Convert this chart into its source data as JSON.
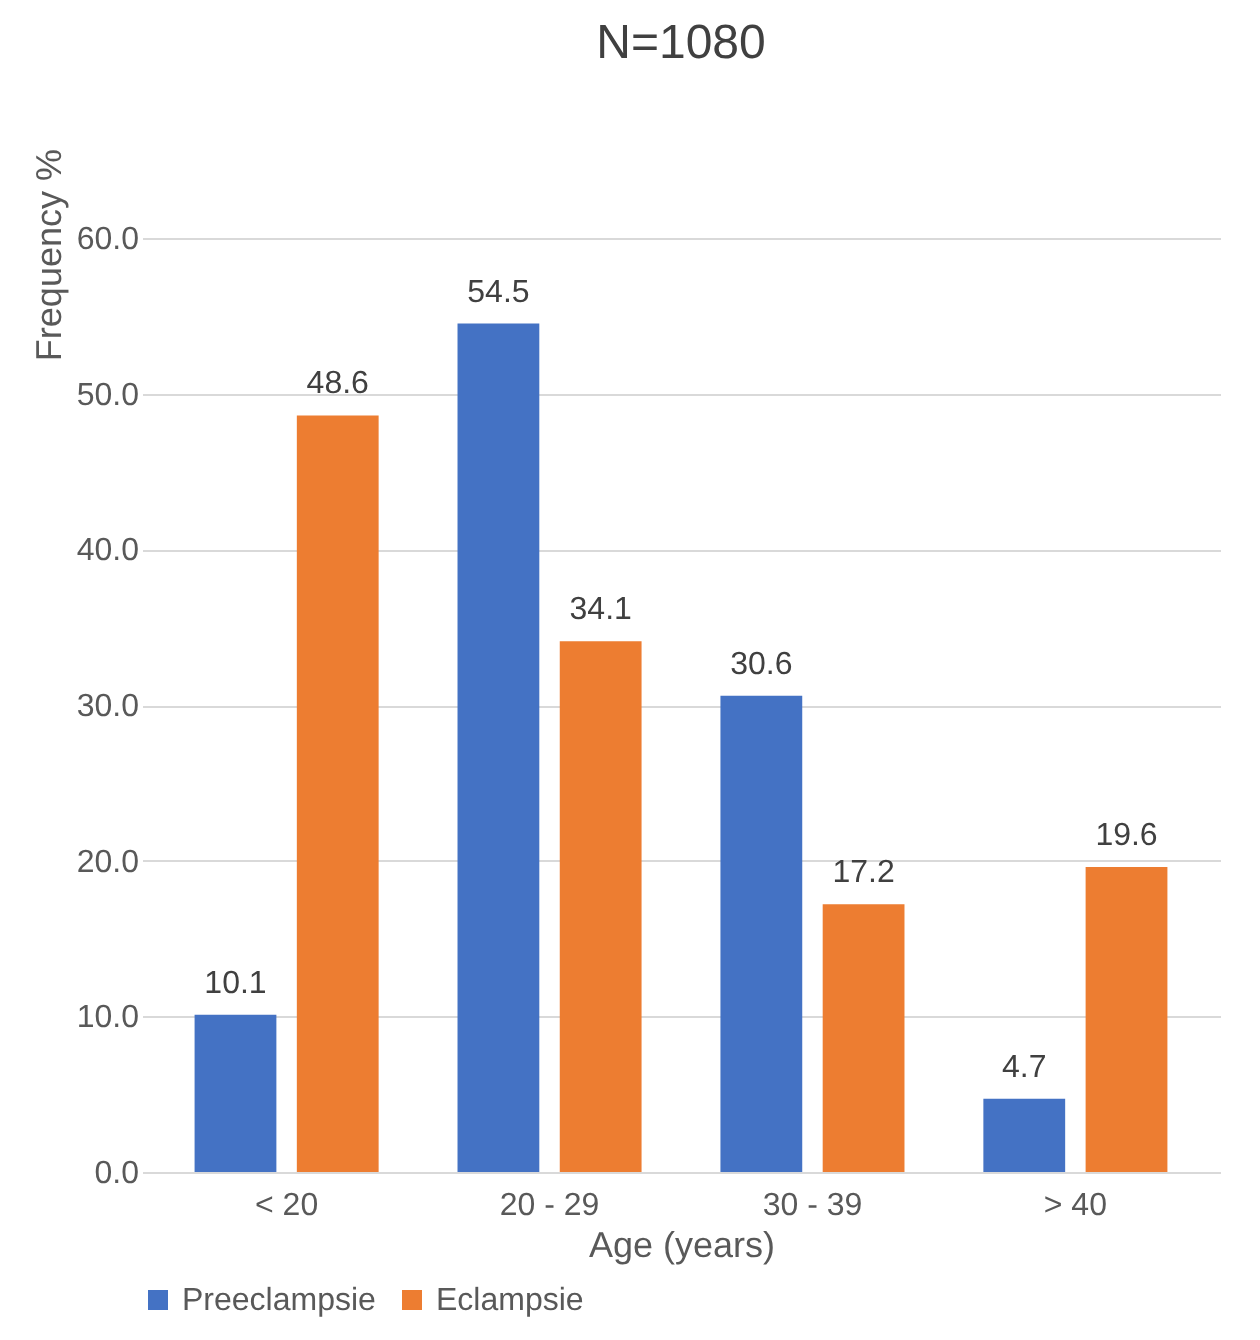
{
  "chart_data": {
    "type": "bar",
    "title": "N=1080",
    "xlabel": "Age (years)",
    "ylabel": "Frequency %",
    "categories": [
      "< 20",
      "20 - 29",
      "30 - 39",
      "> 40"
    ],
    "series": [
      {
        "name": "Preeclampsie",
        "color": "#4472c4",
        "values": [
          10.1,
          54.5,
          30.6,
          4.7
        ]
      },
      {
        "name": "Eclampsie",
        "color": "#ed7d31",
        "values": [
          48.6,
          34.1,
          17.2,
          19.6
        ]
      }
    ],
    "ylim": [
      0,
      60
    ],
    "yticks": [
      {
        "value": 0,
        "label": "0.0"
      },
      {
        "value": 10,
        "label": "10.0"
      },
      {
        "value": 20,
        "label": "20.0"
      },
      {
        "value": 30,
        "label": "30.0"
      },
      {
        "value": 40,
        "label": "40.0"
      },
      {
        "value": 50,
        "label": "50.0"
      },
      {
        "value": 60,
        "label": "60.0"
      }
    ],
    "grid": "y",
    "legend": "bottom",
    "data_labels": true
  }
}
